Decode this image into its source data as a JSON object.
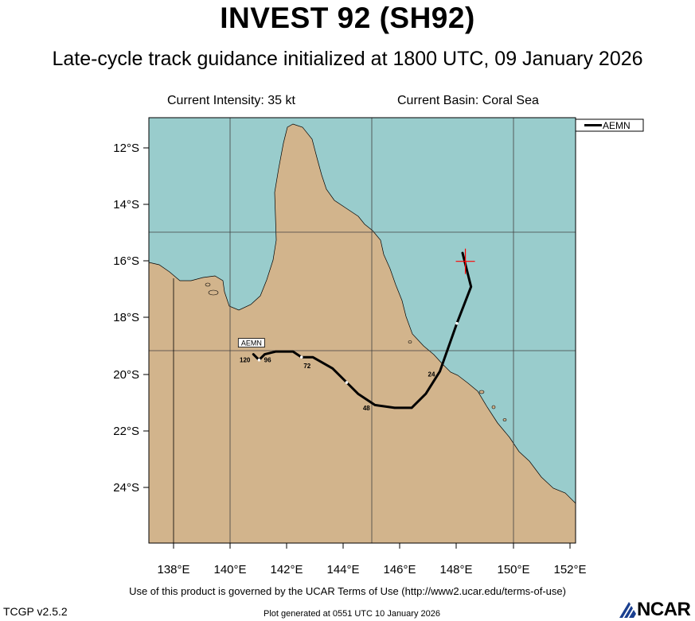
{
  "header": {
    "title": "INVEST 92 (SH92)",
    "subtitle": "Late-cycle track guidance initialized at 1800 UTC, 09 January 2026",
    "current_intensity": "Current Intensity: 35 kt",
    "current_basin": "Current Basin: Coral Sea"
  },
  "colors": {
    "land": "#d2b48c",
    "ocean": "#99cccc",
    "track": "#000000",
    "current_position_marker": "#ff0000",
    "logo_blue": "#1a3f8f"
  },
  "map": {
    "lon_range": [
      137.1,
      152.2
    ],
    "lat_range": [
      -26.0,
      -10.9
    ],
    "lon_ticks": [
      "138°E",
      "140°E",
      "142°E",
      "144°E",
      "146°E",
      "148°E",
      "150°E",
      "152°E"
    ],
    "lat_ticks": [
      "12°S",
      "14°S",
      "16°S",
      "18°S",
      "20°S",
      "22°S",
      "24°S"
    ],
    "legend": {
      "entries": [
        "AEMN"
      ]
    },
    "current_position": {
      "lon": 148.3,
      "lat": -16.0
    },
    "tracks": [
      {
        "model": "AEMN",
        "label": "AEMN",
        "points": [
          {
            "lon": 148.2,
            "lat": -15.7
          },
          {
            "lon": 148.5,
            "lat": -16.9
          },
          {
            "lon": 148.0,
            "lat": -18.2
          },
          {
            "lon": 147.4,
            "lat": -19.9
          },
          {
            "lon": 146.9,
            "lat": -20.7
          },
          {
            "lon": 146.4,
            "lat": -21.2
          },
          {
            "lon": 145.8,
            "lat": -21.2
          },
          {
            "lon": 145.1,
            "lat": -21.1
          },
          {
            "lon": 144.5,
            "lat": -20.7
          },
          {
            "lon": 144.1,
            "lat": -20.3
          },
          {
            "lon": 143.6,
            "lat": -19.8
          },
          {
            "lon": 142.9,
            "lat": -19.4
          },
          {
            "lon": 142.5,
            "lat": -19.4
          },
          {
            "lon": 142.2,
            "lat": -19.2
          },
          {
            "lon": 141.6,
            "lat": -19.2
          },
          {
            "lon": 141.2,
            "lat": -19.3
          },
          {
            "lon": 141.0,
            "lat": -19.5
          },
          {
            "lon": 140.8,
            "lat": -19.3
          }
        ],
        "markers": [
          {
            "lon": 148.0,
            "lat": -18.2
          },
          {
            "lon": 144.1,
            "lat": -20.3
          },
          {
            "lon": 142.5,
            "lat": -19.4
          },
          {
            "lon": 141.0,
            "lat": -19.5
          }
        ],
        "hour_labels": [
          {
            "text": "24",
            "lon": 147.1,
            "lat": -20.0
          },
          {
            "text": "48",
            "lon": 144.8,
            "lat": -21.2
          },
          {
            "text": "72",
            "lon": 142.7,
            "lat": -19.7
          },
          {
            "text": "96",
            "lon": 141.3,
            "lat": -19.5
          },
          {
            "text": "120",
            "lon": 140.5,
            "lat": -19.5
          }
        ]
      }
    ]
  },
  "footer": {
    "terms": "Use of this product is governed by the UCAR Terms of Use (http://www2.ucar.edu/terms-of-use)",
    "version": "TCGP v2.5.2",
    "generated": "Plot generated at 0551 UTC   10 January 2026",
    "logo_text": "NCAR"
  }
}
